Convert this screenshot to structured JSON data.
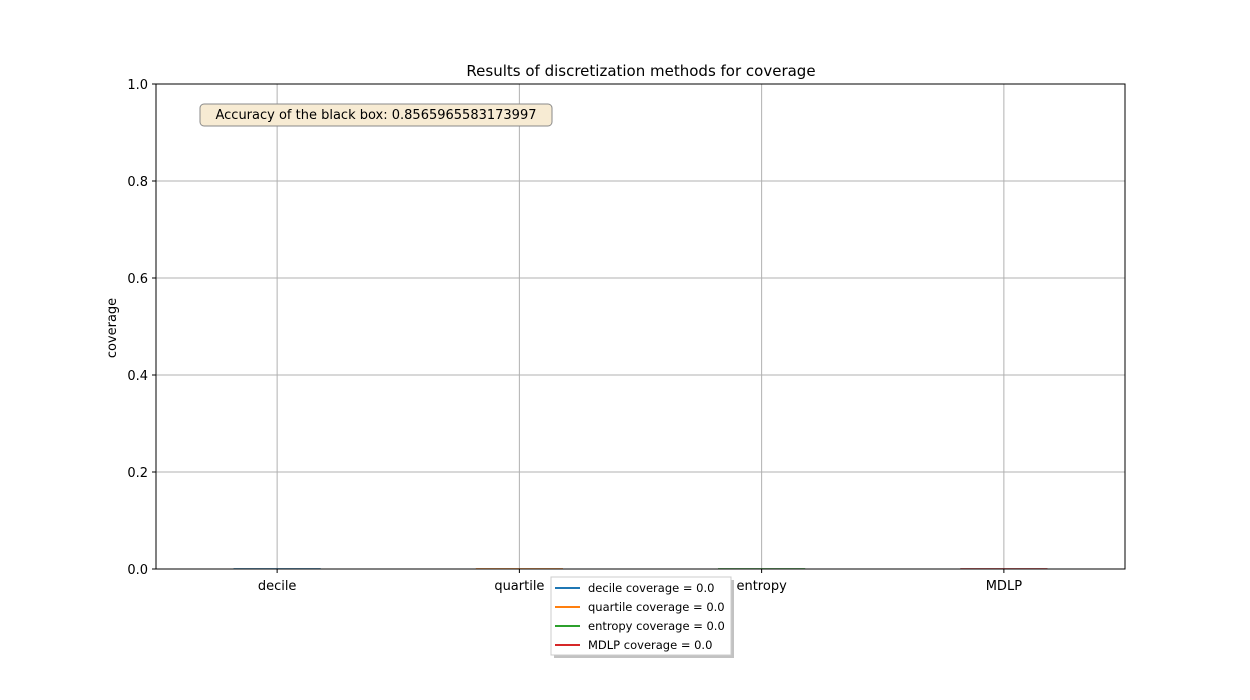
{
  "chart_data": {
    "type": "bar",
    "title": "Results of discretization methods for coverage",
    "xlabel": "",
    "ylabel": "coverage",
    "categories": [
      "decile",
      "quartile",
      "entropy",
      "MDLP"
    ],
    "values": [
      0.0,
      0.0,
      0.0,
      0.0
    ],
    "ylim": [
      0.0,
      1.0
    ],
    "yticks": [
      "0.0",
      "0.2",
      "0.4",
      "0.6",
      "0.8",
      "1.0"
    ],
    "grid": true,
    "legend_position": "below",
    "annotation": "Accuracy of the black box: 0.8565965583173997",
    "series": [
      {
        "name": "decile coverage = 0.0",
        "color": "#1f77b4"
      },
      {
        "name": "quartile coverage = 0.0",
        "color": "#ff7f0e"
      },
      {
        "name": "entropy coverage = 0.0",
        "color": "#2ca02c"
      },
      {
        "name": "MDLP coverage = 0.0",
        "color": "#d62728"
      }
    ]
  }
}
